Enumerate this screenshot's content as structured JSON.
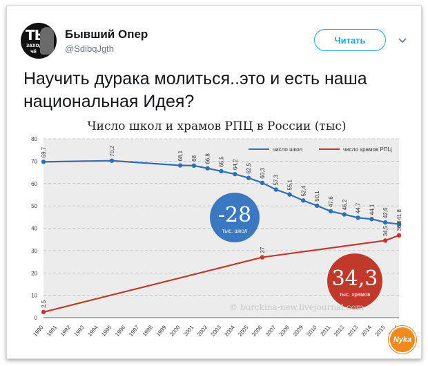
{
  "tweet": {
    "author_name": "Бывший Опер",
    "handle": "@SdibqJgth",
    "follow_label": "Читать",
    "text": "Научить дурака молиться..это и есть наша национальная Идея?",
    "avatar_text_big": "ТЫ",
    "avatar_text_small1": "ЗАХОДИ",
    "avatar_text_small2": "ЧЁ"
  },
  "watermark": "© burckina-new.livejournal.com",
  "logo_text": "Nyka",
  "colors": {
    "schools": "#2f6fb5",
    "temples": "#c0392b",
    "follow": "#1da1f2",
    "badge_blue": "#3a78c2",
    "badge_red": "#c0392b"
  },
  "chart_data": {
    "type": "line",
    "title": "Число школ и храмов РПЦ в России (тыс)",
    "ylim": [
      0,
      80
    ],
    "yticks": [
      0,
      10,
      20,
      30,
      40,
      50,
      60,
      70,
      80
    ],
    "grid": true,
    "legend_position": "top-right",
    "x_categories": [
      "1990",
      "1991",
      "1992",
      "1993",
      "1994",
      "1995",
      "1996",
      "1997",
      "1998",
      "1999",
      "2000",
      "2001",
      "2002",
      "2003",
      "2004",
      "2005",
      "2006",
      "2007",
      "2008",
      "2009",
      "2010",
      "2011",
      "2012",
      "2013",
      "2014",
      "2015",
      "2016"
    ],
    "series": [
      {
        "name": "число школ",
        "points": [
          [
            1990,
            69.7
          ],
          [
            1995,
            70.2
          ],
          [
            2000,
            68.1
          ],
          [
            2001,
            68
          ],
          [
            2002,
            66.8
          ],
          [
            2003,
            65.5
          ],
          [
            2004,
            64.2
          ],
          [
            2005,
            62.5
          ],
          [
            2006,
            60.3
          ],
          [
            2007,
            57.3
          ],
          [
            2008,
            55.1
          ],
          [
            2009,
            52.4
          ],
          [
            2010,
            50.1
          ],
          [
            2011,
            47.6
          ],
          [
            2012,
            46.2
          ],
          [
            2013,
            44.7
          ],
          [
            2014,
            44.1
          ],
          [
            2015,
            42.6
          ],
          [
            2016,
            41.8
          ]
        ],
        "labels": [
          "69,7",
          "70,2",
          "68,1",
          "68",
          "66,8",
          "65,5",
          "64,2",
          "62,5",
          "60,3",
          "57,3",
          "55,1",
          "52,4",
          "50,1",
          "47,6",
          "46,2",
          "44,7",
          "44,1",
          "42,6",
          "41,8"
        ]
      },
      {
        "name": "число храмов РПЦ",
        "points": [
          [
            1990,
            2.5
          ],
          [
            2006,
            27
          ],
          [
            2015,
            34.5
          ],
          [
            2016,
            36.8
          ]
        ],
        "labels": [
          "2,5",
          "27",
          "34,5",
          "36,8"
        ]
      }
    ],
    "badges": [
      {
        "value": "-28",
        "caption": "тыс. школ"
      },
      {
        "value": "34,3",
        "caption": "тыс. храмов"
      }
    ]
  }
}
